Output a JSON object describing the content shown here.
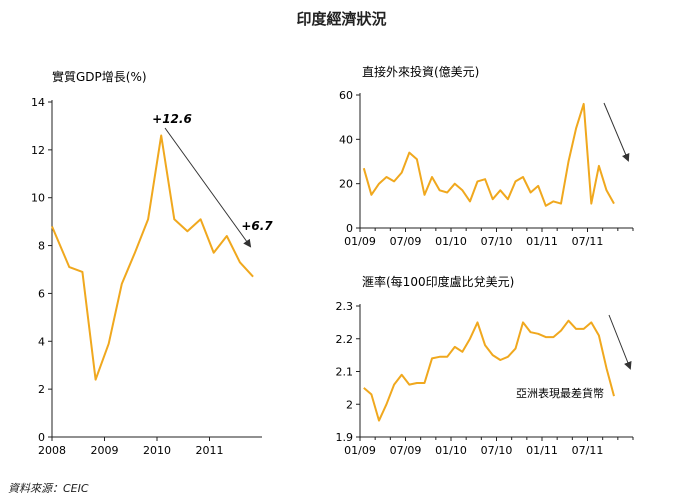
{
  "title": "印度經濟狀況",
  "source": "資料來源：CEIC",
  "colors": {
    "series": "#f0a81e",
    "axis": "#222222",
    "arrow": "#333333"
  },
  "chart_data": [
    {
      "type": "line",
      "title": "實質GDP增長(%)",
      "ylim": [
        0,
        14
      ],
      "yticks": [
        0,
        2,
        4,
        6,
        8,
        10,
        12,
        14
      ],
      "xlim": [
        2008,
        2012
      ],
      "xticks": [
        2008,
        2009,
        2010,
        2011
      ],
      "x": [
        2008.0,
        2008.33,
        2008.58,
        2008.83,
        2009.08,
        2009.33,
        2009.58,
        2009.83,
        2010.08,
        2010.33,
        2010.58,
        2010.83,
        2011.08,
        2011.33,
        2011.58,
        2011.83
      ],
      "y": [
        8.8,
        7.1,
        6.9,
        2.4,
        3.9,
        6.4,
        7.7,
        9.1,
        12.6,
        9.1,
        8.6,
        9.1,
        7.7,
        8.4,
        7.3,
        6.7
      ],
      "annotations": [
        "+12.6",
        "+6.7"
      ]
    },
    {
      "type": "line",
      "title": "直接外來投資(億美元)",
      "ylim": [
        0,
        60
      ],
      "yticks": [
        0,
        20,
        40,
        60
      ],
      "xlim": [
        0,
        36
      ],
      "xticks": [
        "01/09",
        "07/09",
        "01/10",
        "07/10",
        "01/11",
        "07/11"
      ],
      "xtick_pos": [
        0,
        6,
        12,
        18,
        24,
        30
      ],
      "y": [
        27,
        15,
        20,
        23,
        21,
        25,
        34,
        31,
        15,
        23,
        17,
        16,
        20,
        17,
        12,
        21,
        22,
        13,
        17,
        13,
        21,
        23,
        16,
        19,
        10,
        12,
        11,
        30,
        45,
        56,
        11,
        28,
        17,
        11
      ]
    },
    {
      "type": "line",
      "title": "滙率(每100印度盧比兌美元)",
      "ylim": [
        1.9,
        2.3
      ],
      "yticks": [
        "1.9",
        "2",
        "2.1",
        "2.2",
        "2.3"
      ],
      "ytick_vals": [
        1.9,
        2.0,
        2.1,
        2.2,
        2.3
      ],
      "xlim": [
        0,
        36
      ],
      "xticks": [
        "01/09",
        "07/09",
        "01/10",
        "07/10",
        "01/11",
        "07/11"
      ],
      "xtick_pos": [
        0,
        6,
        12,
        18,
        24,
        30
      ],
      "y": [
        2.05,
        2.03,
        1.95,
        2.0,
        2.06,
        2.09,
        2.06,
        2.065,
        2.065,
        2.14,
        2.145,
        2.145,
        2.175,
        2.16,
        2.2,
        2.25,
        2.18,
        2.15,
        2.135,
        2.145,
        2.17,
        2.25,
        2.22,
        2.215,
        2.205,
        2.205,
        2.225,
        2.255,
        2.23,
        2.23,
        2.25,
        2.21,
        2.11,
        2.025
      ],
      "annotations": [
        "亞洲表現最差貨幣"
      ]
    }
  ]
}
